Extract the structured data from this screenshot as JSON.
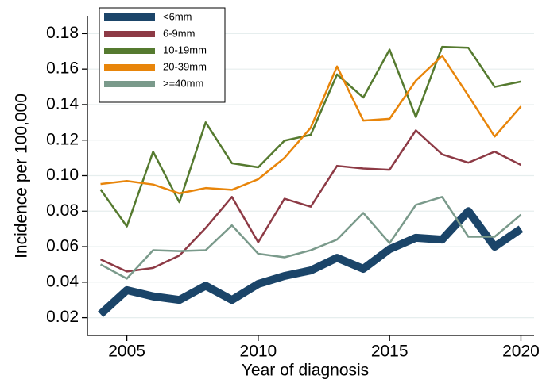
{
  "chart_data": {
    "type": "line",
    "xlabel": "Year of diagnosis",
    "ylabel": "Incidence per 100,000",
    "x": [
      2004,
      2005,
      2006,
      2007,
      2008,
      2009,
      2010,
      2011,
      2012,
      2013,
      2014,
      2015,
      2016,
      2017,
      2018,
      2019,
      2020
    ],
    "series": [
      {
        "name": "<6mm",
        "color": "#1b4569",
        "width": 10,
        "values": [
          0.022,
          0.0355,
          0.032,
          0.03,
          0.038,
          0.03,
          0.039,
          0.0435,
          0.0466,
          0.0537,
          0.0475,
          0.0586,
          0.065,
          0.064,
          0.08,
          0.06,
          0.07
        ]
      },
      {
        "name": "6-9mm",
        "color": "#8d3a45",
        "width": 2.5,
        "values": [
          0.0528,
          0.046,
          0.048,
          0.055,
          0.0705,
          0.088,
          0.0625,
          0.087,
          0.0825,
          0.1055,
          0.104,
          0.1033,
          0.1255,
          0.112,
          0.1073,
          0.1135,
          0.106
        ]
      },
      {
        "name": "10-19mm",
        "color": "#557a2f",
        "width": 2.5,
        "values": [
          0.0922,
          0.0714,
          0.1135,
          0.085,
          0.13,
          0.107,
          0.1047,
          0.1197,
          0.123,
          0.157,
          0.144,
          0.171,
          0.133,
          0.1725,
          0.172,
          0.15,
          0.153
        ]
      },
      {
        "name": "20-39mm",
        "color": "#e8850a",
        "width": 2.5,
        "values": [
          0.0953,
          0.097,
          0.095,
          0.09,
          0.093,
          0.092,
          0.098,
          0.11,
          0.127,
          0.1615,
          0.131,
          0.132,
          0.1535,
          0.1675,
          0.145,
          0.122,
          0.139
        ]
      },
      {
        "name": ">=40mm",
        "color": "#7a9a8b",
        "width": 2.5,
        "values": [
          0.05,
          0.042,
          0.058,
          0.0575,
          0.058,
          0.072,
          0.056,
          0.054,
          0.058,
          0.064,
          0.079,
          0.062,
          0.0835,
          0.088,
          0.0656,
          0.0656,
          0.078
        ]
      }
    ],
    "xlim": [
      2003.5,
      2020.5
    ],
    "xticks": [
      2005,
      2010,
      2015,
      2020
    ],
    "ylim": [
      0.01,
      0.19
    ],
    "yticks": [
      0.02,
      0.04,
      0.06,
      0.08,
      {
        "value": 0.1,
        "label": "0.10"
      },
      0.12,
      0.14,
      0.16,
      0.18
    ],
    "grid": true,
    "legend": "upper left"
  }
}
